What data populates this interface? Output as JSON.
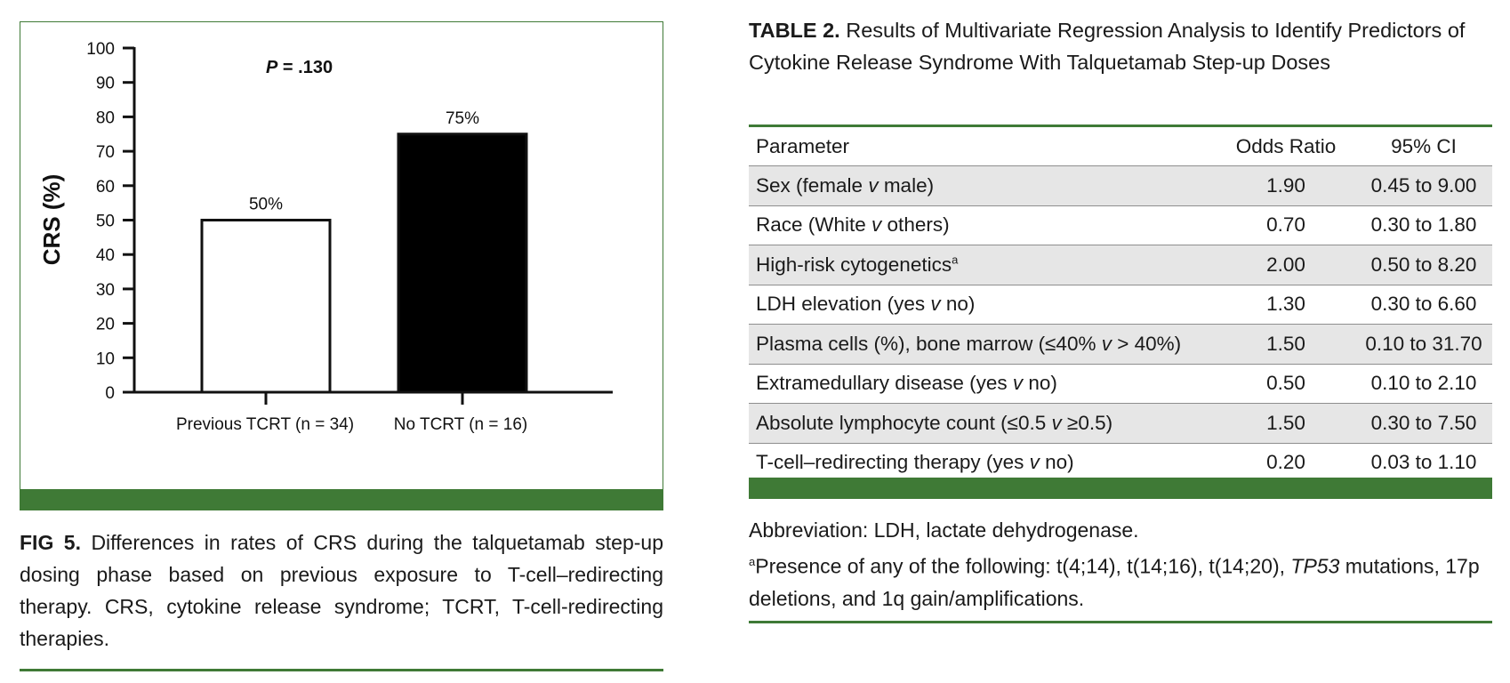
{
  "figure": {
    "caption_label": "FIG 5.",
    "caption_text": "Differences in rates of CRS during the talquetamab step-up dosing phase based on previous exposure to T-cell–redirecting therapy. CRS, cytokine release syndrome; TCRT, T-cell-redirecting therapies.",
    "colors": {
      "accent": "#3f7a36",
      "bar_previous": "#ffffff",
      "bar_none": "#000000"
    }
  },
  "chart_data": {
    "type": "bar",
    "categories": [
      "Previous TCRT (n = 34)",
      "No TCRT (n = 16)"
    ],
    "values": [
      50,
      75
    ],
    "data_labels": [
      "50%",
      "75%"
    ],
    "ylabel": "CRS (%)",
    "ylim": [
      0,
      100
    ],
    "yticks": [
      0,
      10,
      20,
      30,
      40,
      50,
      60,
      70,
      80,
      90,
      100
    ],
    "annotation": {
      "italic": "P",
      "text": " = .130"
    },
    "grid": false
  },
  "table": {
    "title_label": "TABLE 2.",
    "title_text": "Results of Multivariate Regression Analysis to Identify Predictors of Cytokine Release Syndrome With Talquetamab Step-up Doses",
    "columns": [
      "Parameter",
      "Odds Ratio",
      "95% CI"
    ],
    "rows": [
      {
        "parameter": [
          "Sex (female ",
          "v",
          " male)"
        ],
        "odds_ratio": "1.90",
        "ci": "0.45 to 9.00"
      },
      {
        "parameter": [
          "Race (White ",
          "v",
          " others)"
        ],
        "odds_ratio": "0.70",
        "ci": "0.30 to 1.80"
      },
      {
        "parameter": [
          "High-risk cytogenetics"
        ],
        "footnote": "a",
        "odds_ratio": "2.00",
        "ci": "0.50 to 8.20"
      },
      {
        "parameter": [
          "LDH elevation (yes ",
          "v",
          " no)"
        ],
        "odds_ratio": "1.30",
        "ci": "0.30 to 6.60"
      },
      {
        "parameter": [
          "Plasma cells (%), bone marrow (≤40% ",
          "v",
          " > 40%)"
        ],
        "odds_ratio": "1.50",
        "ci": "0.10 to 31.70"
      },
      {
        "parameter": [
          "Extramedullary disease (yes ",
          "v",
          " no)"
        ],
        "odds_ratio": "0.50",
        "ci": "0.10 to 2.10"
      },
      {
        "parameter": [
          "Absolute lymphocyte count (≤0.5 ",
          "v",
          " ≥0.5)"
        ],
        "odds_ratio": "1.50",
        "ci": "0.30 to 7.50"
      },
      {
        "parameter": [
          "T-cell–redirecting therapy (yes ",
          "v",
          " no)"
        ],
        "odds_ratio": "0.20",
        "ci": "0.03 to 1.10"
      }
    ],
    "abbreviation": "Abbreviation: LDH, lactate dehydrogenase.",
    "footnote_marker": "a",
    "footnote_parts": [
      "Presence of any of the following: t(4;14), t(14;16), t(14;20), ",
      "TP53",
      " mutations, 17p deletions, and 1q gain/amplifications."
    ]
  }
}
